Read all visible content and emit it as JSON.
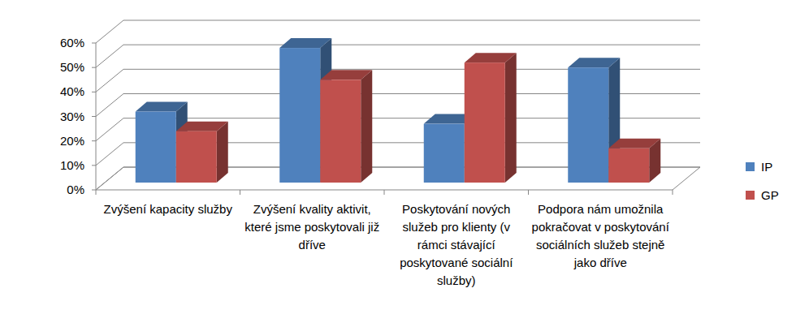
{
  "chart_data": {
    "type": "bar",
    "categories": [
      "Zvýšení kapacity služby",
      "Zvýšení kvality aktivit, které jsme poskytovali již dříve",
      "Poskytování nových služeb pro klienty (v rámci stávající poskytované sociální služby)",
      "Podpora nám umožnila pokračovat v poskytování sociálních služeb stejně jako dříve"
    ],
    "series": [
      {
        "name": "IP",
        "color": "#4f81bd",
        "values": [
          29,
          55,
          24,
          47
        ]
      },
      {
        "name": "GP",
        "color": "#c0504d",
        "values": [
          21,
          42,
          49,
          14
        ]
      }
    ],
    "ylim": [
      0,
      60
    ],
    "yticks": [
      {
        "value": 0,
        "label": "0%"
      },
      {
        "value": 10,
        "label": "10%"
      },
      {
        "value": 20,
        "label": "20%"
      },
      {
        "value": 30,
        "label": "30%"
      },
      {
        "value": 40,
        "label": "40%"
      },
      {
        "value": 50,
        "label": "50%"
      },
      {
        "value": 60,
        "label": "60%"
      }
    ],
    "grid": true,
    "legend": "right"
  }
}
